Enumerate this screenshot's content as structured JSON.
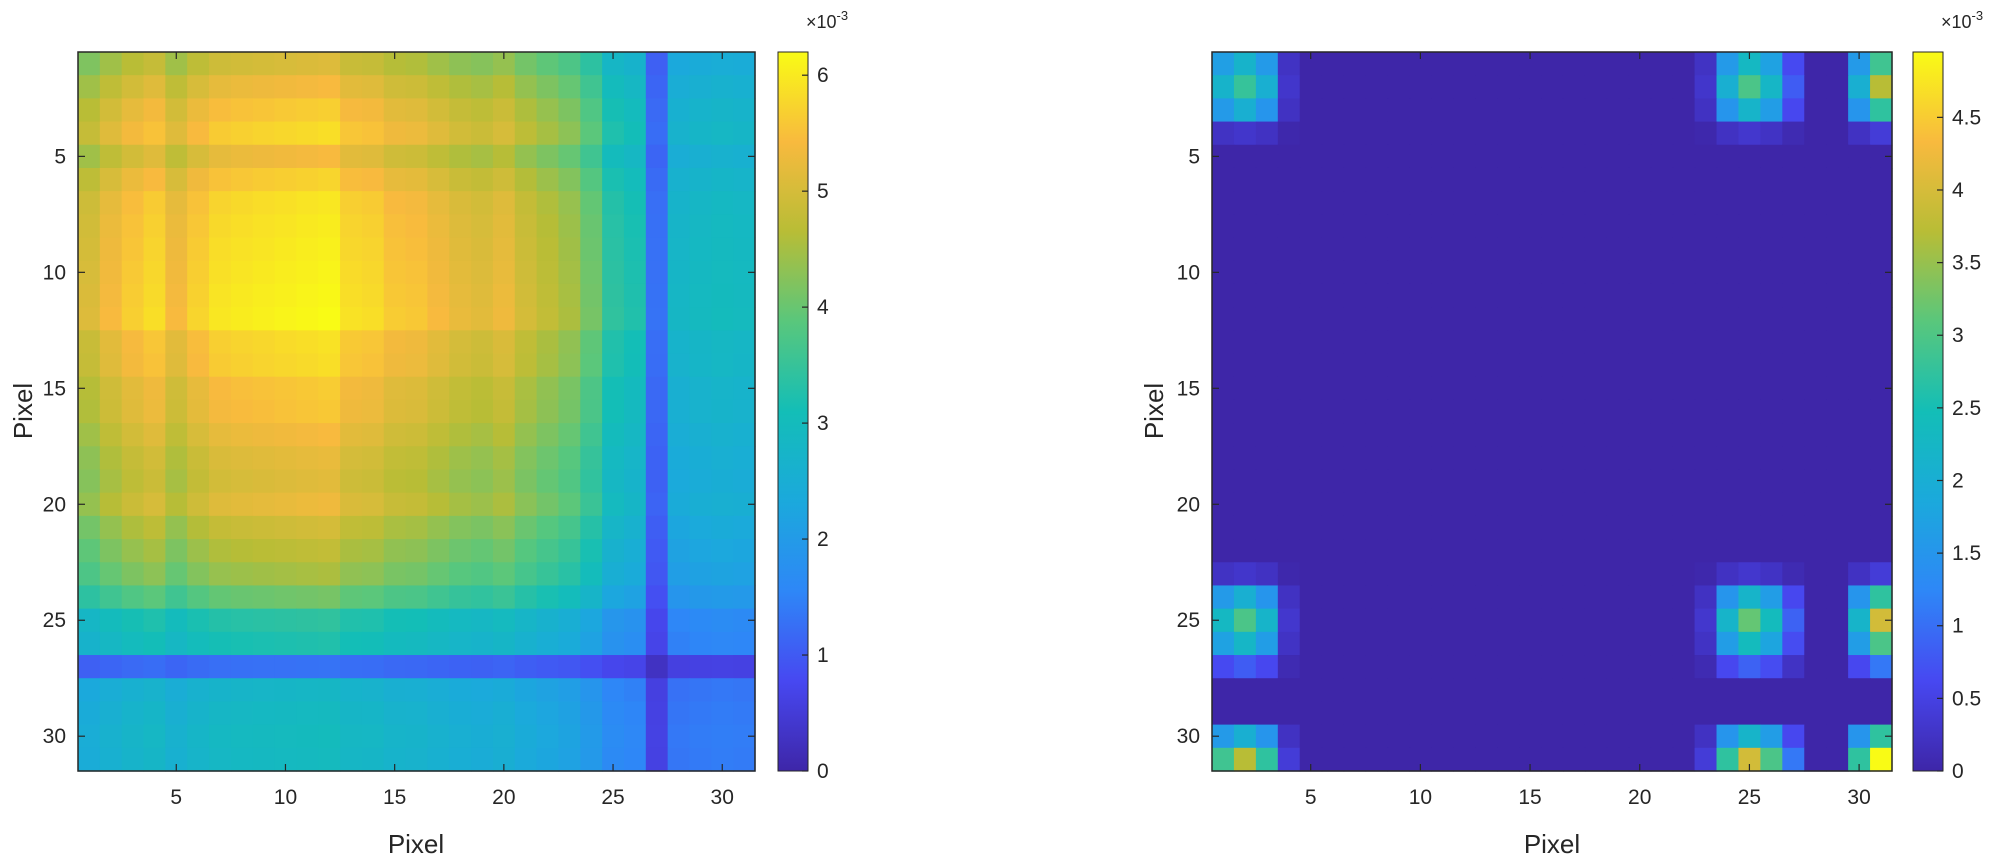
{
  "chart_data": [
    {
      "type": "heatmap",
      "name": "left-heatmap",
      "xlabel": "Pixel",
      "ylabel": "Pixel",
      "xlim": [
        0.5,
        31.5
      ],
      "ylim": [
        0.5,
        31.5
      ],
      "y_reversed": true,
      "xticks": [
        5,
        10,
        15,
        20,
        25,
        30
      ],
      "yticks": [
        5,
        10,
        15,
        20,
        25,
        30
      ],
      "colormap": "parula",
      "colorbar": {
        "range": [
          0,
          0.0062
        ],
        "ticks": [
          0,
          1,
          2,
          3,
          4,
          5,
          6
        ],
        "tick_labels": [
          "0",
          "1",
          "2",
          "3",
          "4",
          "5",
          "6"
        ],
        "exponent_label": "×10",
        "exponent": "-3"
      },
      "profile": [
        2.35,
        2.5,
        2.62,
        2.7,
        2.5,
        2.65,
        2.75,
        2.78,
        2.8,
        2.82,
        2.84,
        2.86,
        2.72,
        2.7,
        2.6,
        2.58,
        2.5,
        2.42,
        2.38,
        2.45,
        2.3,
        2.2,
        2.1,
        1.9,
        1.58,
        1.5,
        0.6,
        1.3,
        1.35,
        1.38,
        1.36
      ],
      "max_value": 0.00609
    },
    {
      "type": "heatmap",
      "name": "right-heatmap",
      "xlabel": "Pixel",
      "ylabel": "Pixel",
      "xlim": [
        0.5,
        31.5
      ],
      "ylim": [
        0.5,
        31.5
      ],
      "y_reversed": true,
      "xticks": [
        5,
        10,
        15,
        20,
        25,
        30
      ],
      "yticks": [
        5,
        10,
        15,
        20,
        25,
        30
      ],
      "colormap": "parula",
      "colorbar": {
        "range": [
          0,
          0.00495
        ],
        "ticks": [
          0,
          0.5,
          1,
          1.5,
          2,
          2.5,
          3,
          3.5,
          4,
          4.5
        ],
        "tick_labels": [
          "0",
          "0.5",
          "1",
          "1.5",
          "2",
          "2.5",
          "3",
          "3.5",
          "4",
          "4.5"
        ],
        "exponent_label": "×10",
        "exponent": "-3"
      },
      "profile": [
        0.58,
        0.75,
        0.55,
        0.08,
        0,
        0,
        0,
        0,
        0,
        0,
        0,
        0,
        0,
        0,
        0,
        0,
        0,
        0,
        0,
        0,
        0,
        0,
        0.08,
        0.55,
        0.8,
        0.6,
        0.22,
        0,
        0,
        0.55,
        1.0
      ],
      "max_value": 0.00495
    }
  ]
}
